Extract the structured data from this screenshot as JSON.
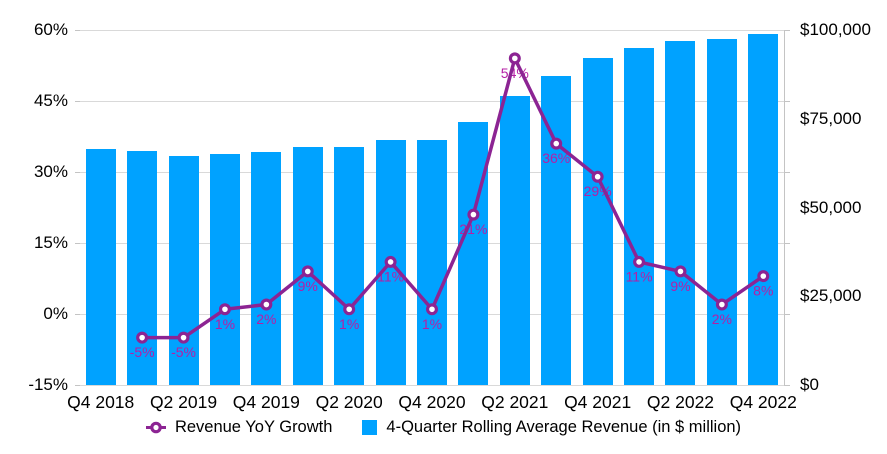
{
  "chart_data": {
    "type": "combo-bar-line",
    "categories": [
      "Q4 2018",
      "Q1 2019",
      "Q2 2019",
      "Q3 2019",
      "Q4 2019",
      "Q1 2020",
      "Q2 2020",
      "Q3 2020",
      "Q4 2020",
      "Q1 2021",
      "Q2 2021",
      "Q3 2021",
      "Q4 2021",
      "Q1 2022",
      "Q2 2022",
      "Q3 2022",
      "Q4 2022"
    ],
    "x_tick_labels": [
      "Q4 2018",
      "Q2 2019",
      "Q4 2019",
      "Q2 2020",
      "Q4 2020",
      "Q2 2021",
      "Q4 2021",
      "Q2 2022",
      "Q4 2022"
    ],
    "x_tick_indices": [
      0,
      2,
      4,
      6,
      8,
      10,
      12,
      14,
      16
    ],
    "series": [
      {
        "name": "Revenue YoY Growth",
        "type": "line",
        "axis": "left",
        "unit": "%",
        "values": [
          null,
          -5,
          -5,
          1,
          2,
          9,
          1,
          11,
          1,
          21,
          54,
          36,
          29,
          11,
          9,
          2,
          8
        ],
        "point_labels": [
          null,
          "-5%",
          "-5%",
          "1%",
          "2%",
          "9%",
          "1%",
          "11%",
          "1%",
          "21%",
          "54%",
          "36%",
          "29%",
          "11%",
          "9%",
          "2%",
          "8%"
        ]
      },
      {
        "name": "4-Quarter Rolling Average Revenue (in $ million)",
        "type": "bar",
        "axis": "right",
        "values": [
          66500,
          66000,
          64500,
          65000,
          65500,
          67000,
          67000,
          69000,
          69000,
          74000,
          81500,
          87000,
          92000,
          95000,
          97000,
          97500,
          99000
        ]
      }
    ],
    "left_axis": {
      "tick_labels": [
        "60%",
        "45%",
        "30%",
        "15%",
        "0%",
        "-15%"
      ],
      "tick_values": [
        60,
        45,
        30,
        15,
        0,
        -15
      ],
      "min": -15,
      "max": 60
    },
    "right_axis": {
      "tick_labels": [
        "$100,000",
        "$75,000",
        "$50,000",
        "$25,000",
        "$0"
      ],
      "tick_values": [
        100000,
        75000,
        50000,
        25000,
        0
      ],
      "min": 0,
      "max": 100000
    },
    "legend": {
      "line_label": "Revenue YoY Growth",
      "bar_label": "4-Quarter Rolling Average Revenue (in $ million)"
    },
    "grid": true,
    "legend_position": "bottom",
    "colors": {
      "bar": "#00a2ff",
      "line": "#8c2493",
      "marker_fill": "#ffffff",
      "data_label": "#b51fa5",
      "gridline": "#d9d9d9",
      "axis_line": "#c4c4c4",
      "text": "#000000"
    }
  }
}
